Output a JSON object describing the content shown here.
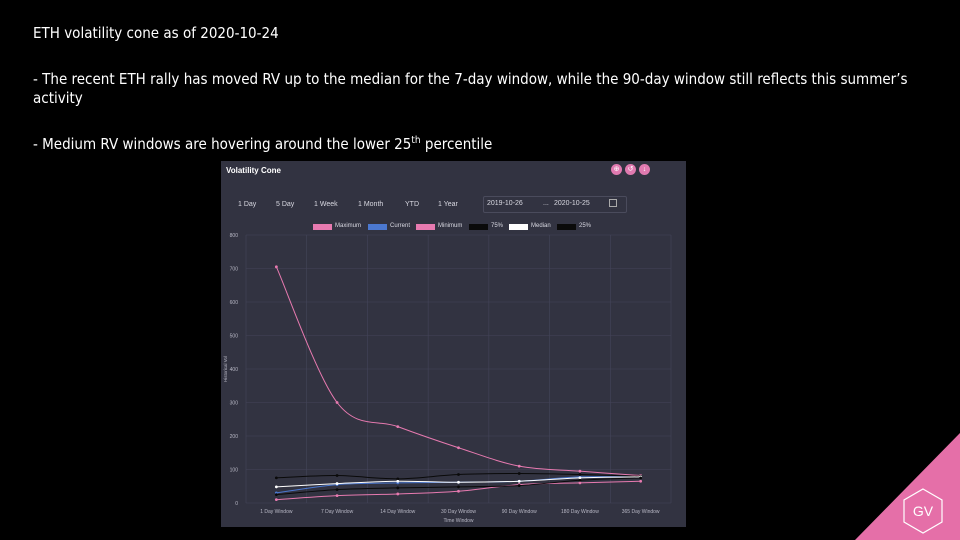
{
  "slide": {
    "title": "ETH volatility cone as of 2020-10-24",
    "bullet1": "- The recent ETH rally has moved RV up to the median for the 7-day window, while the 90-day window still reflects this summer’s activity",
    "bullet2_pre": "- Medium RV windows are hovering around the lower 25",
    "bullet2_sup": "th",
    "bullet2_post": " percentile",
    "logo_text": "GV"
  },
  "panel": {
    "title": "Volatility Cone",
    "range_buttons": [
      "1 Day",
      "5 Day",
      "1 Week",
      "1 Month",
      "YTD",
      "1 Year"
    ],
    "date_from": "2019-10-26",
    "date_sep": "...",
    "date_to": "2020-10-25"
  },
  "chart_data": {
    "type": "line",
    "categories": [
      "1 Day Window",
      "7 Day Window",
      "14 Day Window",
      "30 Day Window",
      "90 Day Window",
      "180 Day Window",
      "365 Day Window"
    ],
    "xlabel": "Time Window",
    "ylabel": "Historical Vol",
    "ylim": [
      0,
      800
    ],
    "yticks": [
      0,
      100,
      200,
      300,
      400,
      500,
      600,
      700,
      800
    ],
    "grid": true,
    "legend_position": "top",
    "series": [
      {
        "name": "Maximum",
        "color": "#e77ab0",
        "values": [
          705,
          300,
          228,
          165,
          110,
          95,
          82
        ]
      },
      {
        "name": "Current",
        "color": "#4b78d0",
        "values": [
          30,
          55,
          60,
          62,
          65,
          78,
          78
        ]
      },
      {
        "name": "Minimum",
        "color": "#e77ab0",
        "values": [
          10,
          22,
          27,
          35,
          55,
          60,
          65
        ]
      },
      {
        "name": "75%",
        "color": "#0a0a0a",
        "values": [
          75,
          82,
          72,
          85,
          88,
          85,
          80
        ]
      },
      {
        "name": "Median",
        "color": "#ffffff",
        "values": [
          48,
          58,
          65,
          62,
          65,
          75,
          78
        ]
      },
      {
        "name": "25%",
        "color": "#0a0a0a",
        "values": [
          25,
          40,
          45,
          48,
          52,
          68,
          75
        ]
      }
    ]
  }
}
